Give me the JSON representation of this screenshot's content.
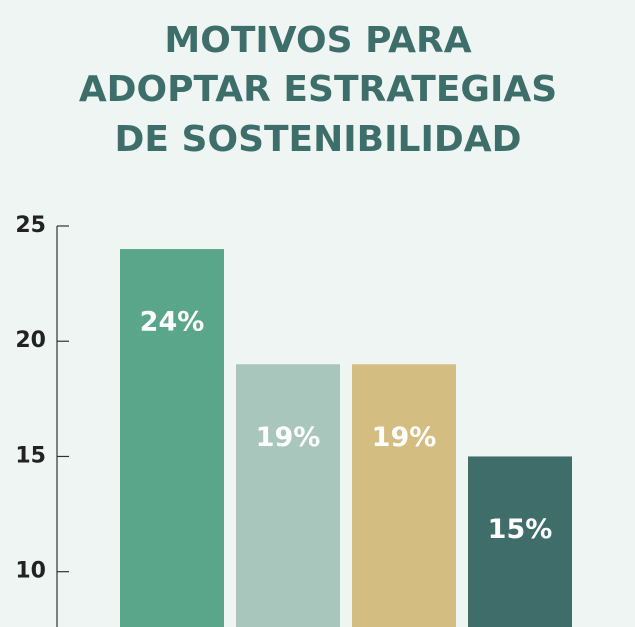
{
  "chart_data": {
    "type": "bar",
    "title": [
      "MOTIVOS PARA",
      "ADOPTAR ESTRATEGIAS",
      "DE SOSTENIBILIDAD"
    ],
    "categories": [
      null,
      null,
      null,
      null
    ],
    "values": [
      24,
      19,
      19,
      15
    ],
    "value_labels": [
      "24%",
      "19%",
      "19%",
      "15%"
    ],
    "colors": [
      "#5aa68a",
      "#a9c6bd",
      "#d4bd80",
      "#3f6d69"
    ],
    "ylim": [
      7.6,
      25
    ],
    "yticks": [
      10,
      15,
      20,
      25
    ],
    "grid": false
  }
}
